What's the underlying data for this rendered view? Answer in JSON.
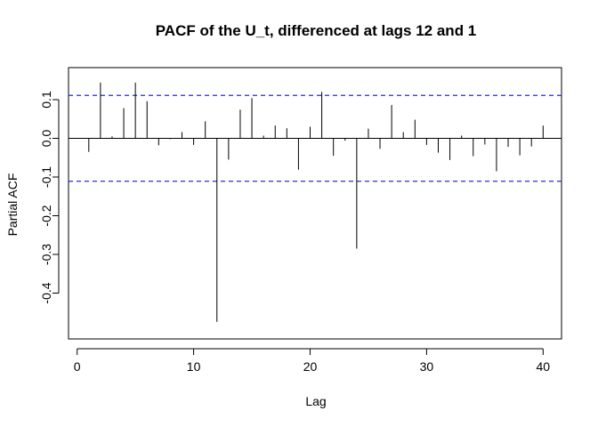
{
  "chart_data": {
    "type": "bar",
    "title": "PACF of the U_t, differenced at lags 12 and 1",
    "xlabel": "Lag",
    "ylabel": "Partial ACF",
    "xlim": [
      0,
      41
    ],
    "ylim": [
      -0.5,
      0.18
    ],
    "x_ticks": [
      0,
      10,
      20,
      30,
      40
    ],
    "y_ticks": [
      -0.4,
      -0.3,
      -0.2,
      -0.1,
      0.0,
      0.1
    ],
    "y_tick_labels": [
      "-0.4",
      "-0.3",
      "-0.2",
      "-0.1",
      "0.0",
      "0.1"
    ],
    "confidence_bounds": [
      0.111,
      -0.111
    ],
    "confidence_color": "#2b2bd9",
    "x": [
      1,
      2,
      3,
      4,
      5,
      6,
      7,
      8,
      9,
      10,
      11,
      12,
      13,
      14,
      15,
      16,
      17,
      18,
      19,
      20,
      21,
      22,
      23,
      24,
      25,
      26,
      27,
      28,
      29,
      30,
      31,
      32,
      33,
      34,
      35,
      36,
      37,
      38,
      39,
      40
    ],
    "values": [
      -0.035,
      0.144,
      0.005,
      0.078,
      0.144,
      0.096,
      -0.018,
      -0.002,
      0.016,
      -0.017,
      0.044,
      -0.474,
      -0.055,
      0.074,
      0.104,
      0.007,
      0.033,
      0.026,
      -0.081,
      0.03,
      0.12,
      -0.045,
      -0.006,
      -0.285,
      0.025,
      -0.027,
      0.086,
      0.016,
      0.048,
      -0.017,
      -0.037,
      -0.056,
      0.007,
      -0.046,
      -0.016,
      -0.085,
      -0.022,
      -0.044,
      -0.021,
      0.033
    ]
  }
}
